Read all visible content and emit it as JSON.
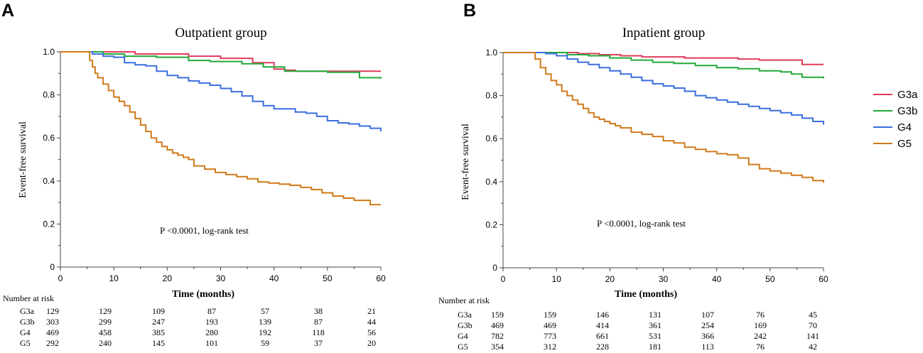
{
  "chart_data": [
    {
      "type": "line",
      "panel": "A",
      "title": "Outpatient group",
      "xlabel": "Time  (months)",
      "ylabel": "Event-free survival",
      "xlim": [
        0,
        60
      ],
      "ylim": [
        0,
        1.0
      ],
      "xticks": [
        0,
        10,
        20,
        30,
        40,
        50,
        60
      ],
      "yticks": [
        0,
        0.2,
        0.4,
        0.6,
        0.8,
        1.0
      ],
      "ytick_labels": [
        "0",
        "0.2",
        "0.4",
        "0.6",
        "0.8",
        "1.0"
      ],
      "annotation": "P  <0.0001,  log-rank test",
      "series": [
        {
          "name": "G3a",
          "color": "#e03b5a",
          "x": [
            0,
            6,
            14,
            24,
            30,
            36,
            40,
            42,
            44,
            60
          ],
          "y": [
            1.0,
            1.0,
            0.99,
            0.98,
            0.97,
            0.95,
            0.92,
            0.915,
            0.91,
            0.91
          ]
        },
        {
          "name": "G3b",
          "color": "#22aa3a",
          "x": [
            0,
            6,
            8,
            12,
            18,
            24,
            28,
            34,
            38,
            42,
            46,
            50,
            56,
            60
          ],
          "y": [
            1.0,
            1.0,
            0.99,
            0.98,
            0.975,
            0.96,
            0.955,
            0.945,
            0.93,
            0.91,
            0.91,
            0.905,
            0.88,
            0.875
          ]
        },
        {
          "name": "G4",
          "color": "#3b6fe0",
          "x": [
            0,
            4,
            6,
            8,
            10,
            12,
            14,
            16,
            18,
            20,
            22,
            24,
            26,
            28,
            30,
            32,
            34,
            36,
            38,
            40,
            42,
            44,
            46,
            48,
            50,
            52,
            54,
            56,
            58,
            60
          ],
          "y": [
            1.0,
            1.0,
            0.99,
            0.98,
            0.975,
            0.95,
            0.94,
            0.935,
            0.91,
            0.89,
            0.88,
            0.865,
            0.855,
            0.845,
            0.83,
            0.815,
            0.795,
            0.77,
            0.75,
            0.735,
            0.735,
            0.72,
            0.715,
            0.7,
            0.68,
            0.67,
            0.665,
            0.655,
            0.645,
            0.63
          ]
        },
        {
          "name": "G5",
          "color": "#d07a1a",
          "x": [
            0,
            4,
            5.5,
            6,
            6.5,
            7,
            8,
            9,
            10,
            11,
            12,
            13,
            14,
            15,
            16,
            17,
            18,
            19,
            20,
            21,
            22,
            23,
            24,
            25,
            27,
            29,
            31,
            33,
            35,
            37,
            39,
            41,
            43,
            45,
            47,
            49,
            51,
            53,
            55,
            58,
            60
          ],
          "y": [
            1.0,
            1.0,
            0.96,
            0.93,
            0.9,
            0.88,
            0.85,
            0.82,
            0.79,
            0.77,
            0.75,
            0.72,
            0.69,
            0.66,
            0.63,
            0.6,
            0.58,
            0.56,
            0.545,
            0.53,
            0.52,
            0.51,
            0.5,
            0.47,
            0.455,
            0.44,
            0.43,
            0.42,
            0.41,
            0.395,
            0.39,
            0.385,
            0.38,
            0.37,
            0.36,
            0.345,
            0.33,
            0.32,
            0.31,
            0.29,
            0.29
          ]
        }
      ],
      "risk_table": {
        "header": "Number at risk",
        "rows": [
          {
            "label": "G3a",
            "values": [
              "129",
              "129",
              "109",
              "87",
              "57",
              "38",
              "21"
            ]
          },
          {
            "label": "G3b",
            "values": [
              "303",
              "299",
              "247",
              "193",
              "139",
              "87",
              "44"
            ]
          },
          {
            "label": "G4",
            "values": [
              "469",
              "458",
              "385",
              "280",
              "192",
              "118",
              "56"
            ]
          },
          {
            "label": "G5",
            "values": [
              "292",
              "240",
              "145",
              "101",
              "59",
              "37",
              "20"
            ]
          }
        ]
      }
    },
    {
      "type": "line",
      "panel": "B",
      "title": "Inpatient group",
      "xlabel": "Time  (months)",
      "ylabel": "Event-free survival",
      "xlim": [
        0,
        60
      ],
      "ylim": [
        0,
        1.0
      ],
      "xticks": [
        0,
        10,
        20,
        30,
        40,
        50,
        60
      ],
      "yticks": [
        0,
        0.2,
        0.4,
        0.6,
        0.8,
        1.0
      ],
      "ytick_labels": [
        "0",
        "0.2",
        "0.4",
        "0.6",
        "0.8",
        "1.0"
      ],
      "annotation": "P  <0.0001,  log-rank test",
      "series": [
        {
          "name": "G3a",
          "color": "#e03b5a",
          "x": [
            0,
            10,
            14,
            18,
            22,
            26,
            34,
            44,
            48,
            56,
            60
          ],
          "y": [
            1.0,
            1.0,
            0.995,
            0.99,
            0.985,
            0.98,
            0.975,
            0.97,
            0.965,
            0.945,
            0.945
          ]
        },
        {
          "name": "G3b",
          "color": "#22aa3a",
          "x": [
            0,
            8,
            12,
            16,
            20,
            24,
            28,
            32,
            36,
            40,
            44,
            48,
            52,
            54,
            56,
            60
          ],
          "y": [
            1.0,
            1.0,
            0.99,
            0.985,
            0.975,
            0.965,
            0.955,
            0.95,
            0.94,
            0.93,
            0.925,
            0.915,
            0.91,
            0.9,
            0.885,
            0.88
          ]
        },
        {
          "name": "G4",
          "color": "#3b6fe0",
          "x": [
            0,
            6,
            8,
            10,
            12,
            14,
            16,
            18,
            20,
            22,
            24,
            26,
            28,
            30,
            32,
            34,
            36,
            38,
            40,
            42,
            44,
            46,
            48,
            50,
            52,
            54,
            56,
            58,
            60
          ],
          "y": [
            1.0,
            1.0,
            0.995,
            0.985,
            0.97,
            0.955,
            0.945,
            0.93,
            0.915,
            0.9,
            0.885,
            0.87,
            0.855,
            0.845,
            0.835,
            0.82,
            0.8,
            0.79,
            0.78,
            0.77,
            0.76,
            0.75,
            0.74,
            0.73,
            0.72,
            0.71,
            0.695,
            0.68,
            0.665
          ]
        },
        {
          "name": "G5",
          "color": "#d07a1a",
          "x": [
            0,
            5.5,
            6,
            7,
            8,
            9,
            10,
            11,
            12,
            13,
            14,
            15,
            16,
            17,
            18,
            19,
            20,
            21,
            22,
            24,
            26,
            28,
            30,
            32,
            34,
            36,
            38,
            40,
            42,
            44,
            46,
            48,
            50,
            52,
            54,
            56,
            58,
            60
          ],
          "y": [
            1.0,
            1.0,
            0.97,
            0.93,
            0.9,
            0.87,
            0.85,
            0.82,
            0.8,
            0.78,
            0.76,
            0.74,
            0.72,
            0.7,
            0.69,
            0.68,
            0.67,
            0.66,
            0.65,
            0.63,
            0.62,
            0.61,
            0.59,
            0.58,
            0.56,
            0.55,
            0.54,
            0.53,
            0.525,
            0.51,
            0.48,
            0.46,
            0.45,
            0.44,
            0.43,
            0.42,
            0.405,
            0.395
          ]
        }
      ],
      "risk_table": {
        "header": "Number at risk",
        "rows": [
          {
            "label": "G3a",
            "values": [
              "159",
              "159",
              "146",
              "131",
              "107",
              "76",
              "45"
            ]
          },
          {
            "label": "G3b",
            "values": [
              "469",
              "469",
              "414",
              "361",
              "254",
              "169",
              "70"
            ]
          },
          {
            "label": "G4",
            "values": [
              "782",
              "773",
              "661",
              "531",
              "366",
              "242",
              "141"
            ]
          },
          {
            "label": "G5",
            "values": [
              "354",
              "312",
              "228",
              "181",
              "113",
              "76",
              "42"
            ]
          }
        ]
      }
    }
  ],
  "legend": {
    "placement": "right",
    "items": [
      {
        "label": "G3a",
        "color": "#e03b5a"
      },
      {
        "label": "G3b",
        "color": "#22aa3a"
      },
      {
        "label": "G4",
        "color": "#3b6fe0"
      },
      {
        "label": "G5",
        "color": "#d07a1a"
      }
    ]
  }
}
